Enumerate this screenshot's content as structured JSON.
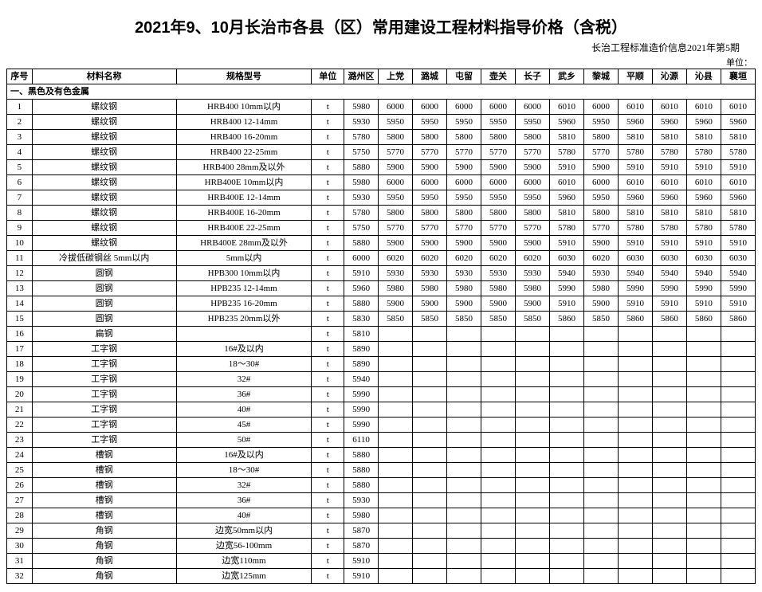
{
  "title": "2021年9、10月长治市各县（区）常用建设工程材料指导价格（含税）",
  "subtitle": "长治工程标准造价信息2021年第5期",
  "unit_label": "单位：",
  "headers": {
    "seq": "序号",
    "name": "材料名称",
    "spec": "规格型号",
    "unit": "单位",
    "regions": [
      "潞州区",
      "上党",
      "潞城",
      "屯留",
      "壶关",
      "长子",
      "武乡",
      "黎城",
      "平顺",
      "沁源",
      "沁县",
      "襄垣"
    ]
  },
  "section_title": "一、黑色及有色金属",
  "rows": [
    {
      "seq": "1",
      "name": "螺纹钢",
      "spec": "HRB400 10mm以内",
      "unit": "t",
      "vals": [
        "5980",
        "6000",
        "6000",
        "6000",
        "6000",
        "6000",
        "6010",
        "6000",
        "6010",
        "6010",
        "6010",
        "6010"
      ]
    },
    {
      "seq": "2",
      "name": "螺纹钢",
      "spec": "HRB400 12-14mm",
      "unit": "t",
      "vals": [
        "5930",
        "5950",
        "5950",
        "5950",
        "5950",
        "5950",
        "5960",
        "5950",
        "5960",
        "5960",
        "5960",
        "5960"
      ]
    },
    {
      "seq": "3",
      "name": "螺纹钢",
      "spec": "HRB400 16-20mm",
      "unit": "t",
      "vals": [
        "5780",
        "5800",
        "5800",
        "5800",
        "5800",
        "5800",
        "5810",
        "5800",
        "5810",
        "5810",
        "5810",
        "5810"
      ]
    },
    {
      "seq": "4",
      "name": "螺纹钢",
      "spec": "HRB400 22-25mm",
      "unit": "t",
      "vals": [
        "5750",
        "5770",
        "5770",
        "5770",
        "5770",
        "5770",
        "5780",
        "5770",
        "5780",
        "5780",
        "5780",
        "5780"
      ]
    },
    {
      "seq": "5",
      "name": "螺纹钢",
      "spec": "HRB400 28mm及以外",
      "unit": "t",
      "vals": [
        "5880",
        "5900",
        "5900",
        "5900",
        "5900",
        "5900",
        "5910",
        "5900",
        "5910",
        "5910",
        "5910",
        "5910"
      ]
    },
    {
      "seq": "6",
      "name": "螺纹钢",
      "spec": "HRB400E 10mm以内",
      "unit": "t",
      "vals": [
        "5980",
        "6000",
        "6000",
        "6000",
        "6000",
        "6000",
        "6010",
        "6000",
        "6010",
        "6010",
        "6010",
        "6010"
      ]
    },
    {
      "seq": "7",
      "name": "螺纹钢",
      "spec": "HRB400E 12-14mm",
      "unit": "t",
      "vals": [
        "5930",
        "5950",
        "5950",
        "5950",
        "5950",
        "5950",
        "5960",
        "5950",
        "5960",
        "5960",
        "5960",
        "5960"
      ]
    },
    {
      "seq": "8",
      "name": "螺纹钢",
      "spec": "HRB400E 16-20mm",
      "unit": "t",
      "vals": [
        "5780",
        "5800",
        "5800",
        "5800",
        "5800",
        "5800",
        "5810",
        "5800",
        "5810",
        "5810",
        "5810",
        "5810"
      ]
    },
    {
      "seq": "9",
      "name": "螺纹钢",
      "spec": "HRB400E 22-25mm",
      "unit": "t",
      "vals": [
        "5750",
        "5770",
        "5770",
        "5770",
        "5770",
        "5770",
        "5780",
        "5770",
        "5780",
        "5780",
        "5780",
        "5780"
      ]
    },
    {
      "seq": "10",
      "name": "螺纹钢",
      "spec": "HRB400E 28mm及以外",
      "unit": "t",
      "vals": [
        "5880",
        "5900",
        "5900",
        "5900",
        "5900",
        "5900",
        "5910",
        "5900",
        "5910",
        "5910",
        "5910",
        "5910"
      ]
    },
    {
      "seq": "11",
      "name": "冷拔低碳钢丝 5mm以内",
      "spec": "5mm以内",
      "unit": "t",
      "vals": [
        "6000",
        "6020",
        "6020",
        "6020",
        "6020",
        "6020",
        "6030",
        "6020",
        "6030",
        "6030",
        "6030",
        "6030"
      ]
    },
    {
      "seq": "12",
      "name": "圆钢",
      "spec": "HPB300 10mm以内",
      "unit": "t",
      "vals": [
        "5910",
        "5930",
        "5930",
        "5930",
        "5930",
        "5930",
        "5940",
        "5930",
        "5940",
        "5940",
        "5940",
        "5940"
      ]
    },
    {
      "seq": "13",
      "name": "圆钢",
      "spec": "HPB235 12-14mm",
      "unit": "t",
      "vals": [
        "5960",
        "5980",
        "5980",
        "5980",
        "5980",
        "5980",
        "5990",
        "5980",
        "5990",
        "5990",
        "5990",
        "5990"
      ]
    },
    {
      "seq": "14",
      "name": "圆钢",
      "spec": "HPB235 16-20mm",
      "unit": "t",
      "vals": [
        "5880",
        "5900",
        "5900",
        "5900",
        "5900",
        "5900",
        "5910",
        "5900",
        "5910",
        "5910",
        "5910",
        "5910"
      ]
    },
    {
      "seq": "15",
      "name": "圆钢",
      "spec": "HPB235 20mm以外",
      "unit": "t",
      "vals": [
        "5830",
        "5850",
        "5850",
        "5850",
        "5850",
        "5850",
        "5860",
        "5850",
        "5860",
        "5860",
        "5860",
        "5860"
      ]
    },
    {
      "seq": "16",
      "name": "扁钢",
      "spec": "",
      "unit": "t",
      "vals": [
        "5810",
        "",
        "",
        "",
        "",
        "",
        "",
        "",
        "",
        "",
        "",
        ""
      ]
    },
    {
      "seq": "17",
      "name": "工字钢",
      "spec": "16#及以内",
      "unit": "t",
      "vals": [
        "5890",
        "",
        "",
        "",
        "",
        "",
        "",
        "",
        "",
        "",
        "",
        ""
      ]
    },
    {
      "seq": "18",
      "name": "工字钢",
      "spec": "18～30#",
      "unit": "t",
      "vals": [
        "5890",
        "",
        "",
        "",
        "",
        "",
        "",
        "",
        "",
        "",
        "",
        ""
      ]
    },
    {
      "seq": "19",
      "name": "工字钢",
      "spec": "32#",
      "unit": "t",
      "vals": [
        "5940",
        "",
        "",
        "",
        "",
        "",
        "",
        "",
        "",
        "",
        "",
        ""
      ]
    },
    {
      "seq": "20",
      "name": "工字钢",
      "spec": "36#",
      "unit": "t",
      "vals": [
        "5990",
        "",
        "",
        "",
        "",
        "",
        "",
        "",
        "",
        "",
        "",
        ""
      ]
    },
    {
      "seq": "21",
      "name": "工字钢",
      "spec": "40#",
      "unit": "t",
      "vals": [
        "5990",
        "",
        "",
        "",
        "",
        "",
        "",
        "",
        "",
        "",
        "",
        ""
      ]
    },
    {
      "seq": "22",
      "name": "工字钢",
      "spec": "45#",
      "unit": "t",
      "vals": [
        "5990",
        "",
        "",
        "",
        "",
        "",
        "",
        "",
        "",
        "",
        "",
        ""
      ]
    },
    {
      "seq": "23",
      "name": "工字钢",
      "spec": "50#",
      "unit": "t",
      "vals": [
        "6110",
        "",
        "",
        "",
        "",
        "",
        "",
        "",
        "",
        "",
        "",
        ""
      ]
    },
    {
      "seq": "24",
      "name": "槽钢",
      "spec": "16#及以内",
      "unit": "t",
      "vals": [
        "5880",
        "",
        "",
        "",
        "",
        "",
        "",
        "",
        "",
        "",
        "",
        ""
      ]
    },
    {
      "seq": "25",
      "name": "槽钢",
      "spec": "18～30#",
      "unit": "t",
      "vals": [
        "5880",
        "",
        "",
        "",
        "",
        "",
        "",
        "",
        "",
        "",
        "",
        ""
      ]
    },
    {
      "seq": "26",
      "name": "槽钢",
      "spec": "32#",
      "unit": "t",
      "vals": [
        "5880",
        "",
        "",
        "",
        "",
        "",
        "",
        "",
        "",
        "",
        "",
        ""
      ]
    },
    {
      "seq": "27",
      "name": "槽钢",
      "spec": "36#",
      "unit": "t",
      "vals": [
        "5930",
        "",
        "",
        "",
        "",
        "",
        "",
        "",
        "",
        "",
        "",
        ""
      ]
    },
    {
      "seq": "28",
      "name": "槽钢",
      "spec": "40#",
      "unit": "t",
      "vals": [
        "5980",
        "",
        "",
        "",
        "",
        "",
        "",
        "",
        "",
        "",
        "",
        ""
      ]
    },
    {
      "seq": "29",
      "name": "角钢",
      "spec": "边宽50mm以内",
      "unit": "t",
      "vals": [
        "5870",
        "",
        "",
        "",
        "",
        "",
        "",
        "",
        "",
        "",
        "",
        ""
      ]
    },
    {
      "seq": "30",
      "name": "角钢",
      "spec": "边宽56-100mm",
      "unit": "t",
      "vals": [
        "5870",
        "",
        "",
        "",
        "",
        "",
        "",
        "",
        "",
        "",
        "",
        ""
      ]
    },
    {
      "seq": "31",
      "name": "角钢",
      "spec": "边宽110mm",
      "unit": "t",
      "vals": [
        "5910",
        "",
        "",
        "",
        "",
        "",
        "",
        "",
        "",
        "",
        "",
        ""
      ]
    },
    {
      "seq": "32",
      "name": "角钢",
      "spec": "边宽125mm",
      "unit": "t",
      "vals": [
        "5910",
        "",
        "",
        "",
        "",
        "",
        "",
        "",
        "",
        "",
        "",
        ""
      ]
    }
  ]
}
